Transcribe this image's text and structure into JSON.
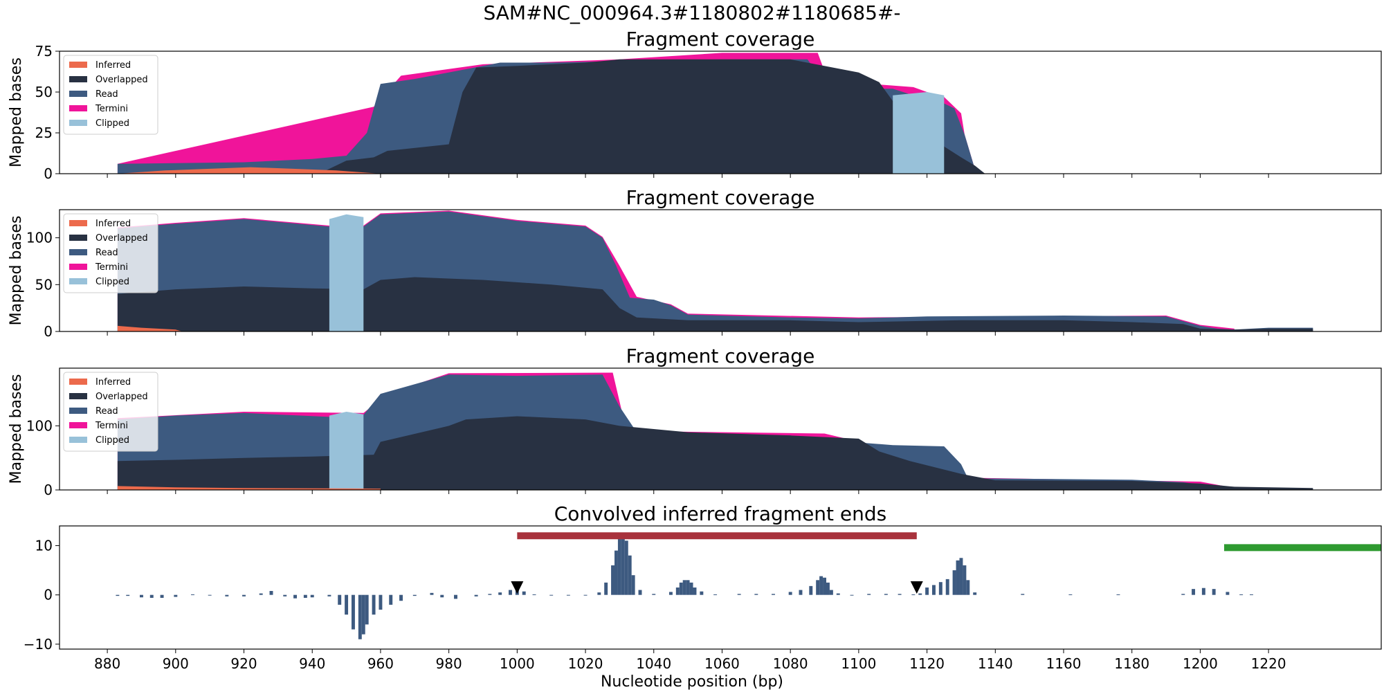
{
  "figure": {
    "suptitle": "SAM#NC_000964.3#1180802#1180685#-",
    "xlabel": "Nucleotide position (bp)",
    "colors": {
      "Inferred": "#ec6a4c",
      "Overlapped": "#283142",
      "Read": "#3d5a80",
      "Termini": "#f0149a",
      "Clipped": "#98c1d9",
      "signal": "#3d5a80",
      "red_bar": "#a8323c",
      "green_bar": "#2e9a30"
    }
  },
  "chart_data": [
    {
      "type": "area",
      "title": "Fragment coverage",
      "ylabel": "Mapped bases",
      "xlim": [
        866,
        1253
      ],
      "ylim": [
        0,
        75
      ],
      "yticks": [
        0,
        25,
        50,
        75
      ],
      "xticks": [
        880,
        900,
        920,
        940,
        960,
        980,
        1000,
        1020,
        1040,
        1060,
        1080,
        1100,
        1120,
        1140,
        1160,
        1180,
        1200,
        1220
      ],
      "xticklabels": [],
      "legend": [
        "Inferred",
        "Overlapped",
        "Read",
        "Termini",
        "Clipped"
      ],
      "legend_position": "upper-left",
      "series": [
        {
          "name": "Inferred",
          "x": [
            883,
            897,
            922,
            947,
            960
          ],
          "y": [
            0,
            2,
            4,
            2,
            0
          ]
        },
        {
          "name": "Overlapped",
          "x": [
            883,
            920,
            942,
            950,
            958,
            962,
            980,
            984,
            988,
            1000,
            1020,
            1030,
            1050,
            1080,
            1100,
            1106,
            1115,
            1124,
            1130,
            1134,
            1137
          ],
          "y": [
            0,
            0,
            0,
            8,
            10,
            14,
            18,
            50,
            65,
            66,
            68,
            70,
            70,
            70,
            62,
            56,
            30,
            18,
            10,
            5,
            0
          ]
        },
        {
          "name": "Read",
          "x": [
            883,
            920,
            940,
            950,
            956,
            958,
            960,
            970,
            985,
            995,
            1010,
            1030,
            1060,
            1085,
            1090,
            1100,
            1110,
            1116,
            1122,
            1128,
            1131,
            1134,
            1137
          ],
          "y": [
            6,
            7,
            9,
            11,
            25,
            40,
            55,
            58,
            64,
            68,
            68,
            69,
            70,
            70,
            55,
            52,
            52,
            48,
            46,
            40,
            24,
            3,
            0
          ]
        },
        {
          "name": "Termini",
          "x": [
            883,
            958,
            966,
            990,
            1030,
            1060,
            1088,
            1091,
            1116,
            1120,
            1125,
            1130,
            1131,
            1134
          ],
          "y": [
            6,
            41,
            60,
            67,
            70,
            74,
            74,
            57,
            53,
            50,
            47,
            37,
            24,
            3
          ]
        },
        {
          "name": "Clipped",
          "x": [
            1110,
            1120,
            1125
          ],
          "y": [
            48,
            50,
            48
          ]
        }
      ]
    },
    {
      "type": "area",
      "title": "Fragment coverage",
      "ylabel": "Mapped bases",
      "xlim": [
        866,
        1253
      ],
      "ylim": [
        0,
        130
      ],
      "yticks": [
        0,
        50,
        100
      ],
      "xticks": [
        880,
        900,
        920,
        940,
        960,
        980,
        1000,
        1020,
        1040,
        1060,
        1080,
        1100,
        1120,
        1140,
        1160,
        1180,
        1200,
        1220
      ],
      "xticklabels": [],
      "legend": [
        "Inferred",
        "Overlapped",
        "Read",
        "Termini",
        "Clipped"
      ],
      "legend_position": "upper-left",
      "series": [
        {
          "name": "Inferred",
          "x": [
            883,
            890,
            900,
            902
          ],
          "y": [
            6,
            4,
            2,
            0
          ]
        },
        {
          "name": "Overlapped",
          "x": [
            883,
            900,
            920,
            940,
            955,
            960,
            970,
            990,
            1010,
            1025,
            1030,
            1035,
            1050,
            1080,
            1100,
            1130,
            1160,
            1180,
            1195,
            1200,
            1210,
            1220,
            1233
          ],
          "y": [
            40,
            45,
            48,
            46,
            45,
            55,
            58,
            55,
            50,
            45,
            25,
            15,
            12,
            12,
            10,
            12,
            12,
            10,
            8,
            3,
            2,
            3,
            3
          ]
        },
        {
          "name": "Read",
          "x": [
            883,
            900,
            920,
            945,
            950,
            955,
            960,
            980,
            1000,
            1020,
            1025,
            1029,
            1033,
            1040,
            1045,
            1050,
            1080,
            1100,
            1120,
            1160,
            1190,
            1194,
            1200,
            1205,
            1210,
            1220,
            1233
          ],
          "y": [
            110,
            115,
            120,
            112,
            108,
            112,
            125,
            128,
            118,
            112,
            100,
            70,
            36,
            34,
            28,
            18,
            15,
            14,
            16,
            17,
            16,
            12,
            6,
            3,
            2,
            4,
            4
          ]
        },
        {
          "name": "Termini",
          "x": [
            883,
            900,
            920,
            945,
            955,
            960,
            980,
            1000,
            1020,
            1025,
            1030,
            1035,
            1045,
            1050,
            1100,
            1190,
            1200,
            1210
          ],
          "y": [
            111,
            116,
            121,
            113,
            113,
            126,
            129,
            119,
            113,
            101,
            70,
            37,
            29,
            19,
            15,
            17,
            7,
            3
          ]
        },
        {
          "name": "Clipped",
          "x": [
            945,
            950,
            955
          ],
          "y": [
            120,
            125,
            122
          ]
        }
      ]
    },
    {
      "type": "area",
      "title": "Fragment coverage",
      "ylabel": "Mapped bases",
      "xlim": [
        866,
        1253
      ],
      "ylim": [
        0,
        190
      ],
      "yticks": [
        0,
        100
      ],
      "xticks": [
        880,
        900,
        920,
        940,
        960,
        980,
        1000,
        1020,
        1040,
        1060,
        1080,
        1100,
        1120,
        1140,
        1160,
        1180,
        1200,
        1220
      ],
      "xticklabels": [],
      "legend": [
        "Inferred",
        "Overlapped",
        "Read",
        "Termini",
        "Clipped"
      ],
      "legend_position": "upper-left",
      "series": [
        {
          "name": "Inferred",
          "x": [
            883,
            900,
            920,
            960
          ],
          "y": [
            6,
            4,
            3,
            2
          ]
        },
        {
          "name": "Overlapped",
          "x": [
            883,
            900,
            920,
            940,
            958,
            960,
            980,
            985,
            1000,
            1020,
            1030,
            1050,
            1080,
            1100,
            1106,
            1115,
            1130,
            1140,
            1180,
            1200,
            1210,
            1233
          ],
          "y": [
            45,
            47,
            50,
            52,
            55,
            75,
            100,
            110,
            115,
            110,
            100,
            90,
            85,
            80,
            60,
            45,
            25,
            15,
            14,
            10,
            5,
            3
          ]
        },
        {
          "name": "Read",
          "x": [
            883,
            900,
            920,
            945,
            955,
            960,
            980,
            1000,
            1025,
            1030,
            1035,
            1080,
            1090,
            1110,
            1125,
            1130,
            1132,
            1180,
            1195,
            1205,
            1215,
            1233
          ],
          "y": [
            110,
            116,
            120,
            114,
            117,
            150,
            180,
            178,
            180,
            130,
            90,
            85,
            78,
            70,
            68,
            40,
            18,
            16,
            12,
            5,
            2,
            2
          ]
        },
        {
          "name": "Termini",
          "x": [
            883,
            920,
            955,
            962,
            980,
            1028,
            1032,
            1090,
            1128,
            1132,
            1200,
            1210
          ],
          "y": [
            112,
            122,
            120,
            150,
            182,
            183,
            92,
            88,
            40,
            19,
            13,
            3
          ]
        },
        {
          "name": "Clipped",
          "x": [
            945,
            950,
            955
          ],
          "y": [
            116,
            122,
            118
          ]
        }
      ]
    },
    {
      "type": "bar",
      "title": "Convolved inferred fragment ends",
      "ylabel": "",
      "xlabel": "Nucleotide position (bp)",
      "xlim": [
        866,
        1253
      ],
      "ylim": [
        -11,
        14
      ],
      "yticks": [
        -10,
        0,
        10
      ],
      "xticks": [
        880,
        900,
        920,
        940,
        960,
        980,
        1000,
        1020,
        1040,
        1060,
        1080,
        1100,
        1120,
        1140,
        1160,
        1180,
        1200,
        1220
      ],
      "x": [
        883,
        886,
        890,
        893,
        896,
        900,
        905,
        910,
        915,
        920,
        925,
        928,
        932,
        935,
        938,
        940,
        945,
        948,
        950,
        952,
        954,
        955,
        956,
        958,
        960,
        963,
        966,
        970,
        975,
        978,
        982,
        988,
        992,
        995,
        998,
        1000,
        1002,
        1005,
        1010,
        1015,
        1020,
        1024,
        1026,
        1028,
        1029,
        1030,
        1031,
        1032,
        1033,
        1034,
        1036,
        1040,
        1045,
        1047,
        1048,
        1049,
        1050,
        1051,
        1052,
        1054,
        1058,
        1065,
        1070,
        1075,
        1080,
        1083,
        1086,
        1088,
        1089,
        1090,
        1091,
        1092,
        1094,
        1098,
        1103,
        1108,
        1112,
        1116,
        1118,
        1120,
        1122,
        1124,
        1126,
        1128,
        1129,
        1130,
        1131,
        1132,
        1134,
        1148,
        1162,
        1176,
        1195,
        1198,
        1201,
        1204,
        1208,
        1212,
        1215
      ],
      "values": [
        -0.2,
        -0.2,
        -0.5,
        -0.6,
        -0.6,
        -0.4,
        0.1,
        -0.1,
        -0.3,
        -0.3,
        0.3,
        0.8,
        -0.3,
        -0.7,
        -0.6,
        -0.5,
        -0.3,
        -2.0,
        -4.0,
        -7.0,
        -9.0,
        -8.0,
        -6.0,
        -4.0,
        -3.0,
        -2.0,
        -1.2,
        -0.2,
        0.4,
        -0.5,
        -0.8,
        -0.3,
        0.2,
        0.5,
        1.0,
        1.5,
        0.7,
        0.1,
        0,
        -0.1,
        0,
        0.5,
        2.5,
        6.0,
        9.0,
        11.5,
        12.5,
        11.0,
        8.0,
        4.0,
        1.0,
        0.2,
        0.6,
        1.5,
        2.5,
        3.0,
        3.0,
        2.5,
        1.5,
        0.7,
        0.1,
        0.2,
        0.2,
        0.2,
        0.6,
        1.0,
        1.8,
        3.0,
        3.8,
        3.5,
        2.5,
        1.0,
        0.3,
        0,
        0.2,
        0.2,
        0.2,
        0.1,
        0.3,
        1.5,
        2.0,
        2.6,
        3.2,
        5.0,
        7.0,
        7.5,
        6.0,
        3.0,
        0.5,
        0.2,
        0.1,
        0.1,
        0.2,
        1.2,
        1.4,
        1.2,
        0.6,
        0.1,
        0.1
      ],
      "markers": [
        {
          "x": 1000,
          "y": 1.5
        },
        {
          "x": 1117,
          "y": 1.5
        }
      ],
      "hbars": [
        {
          "name": "red",
          "x0": 1000,
          "x1": 1117,
          "y": 12
        },
        {
          "name": "green",
          "x0": 1207,
          "x1": 1253,
          "y": 9.6
        }
      ]
    }
  ]
}
